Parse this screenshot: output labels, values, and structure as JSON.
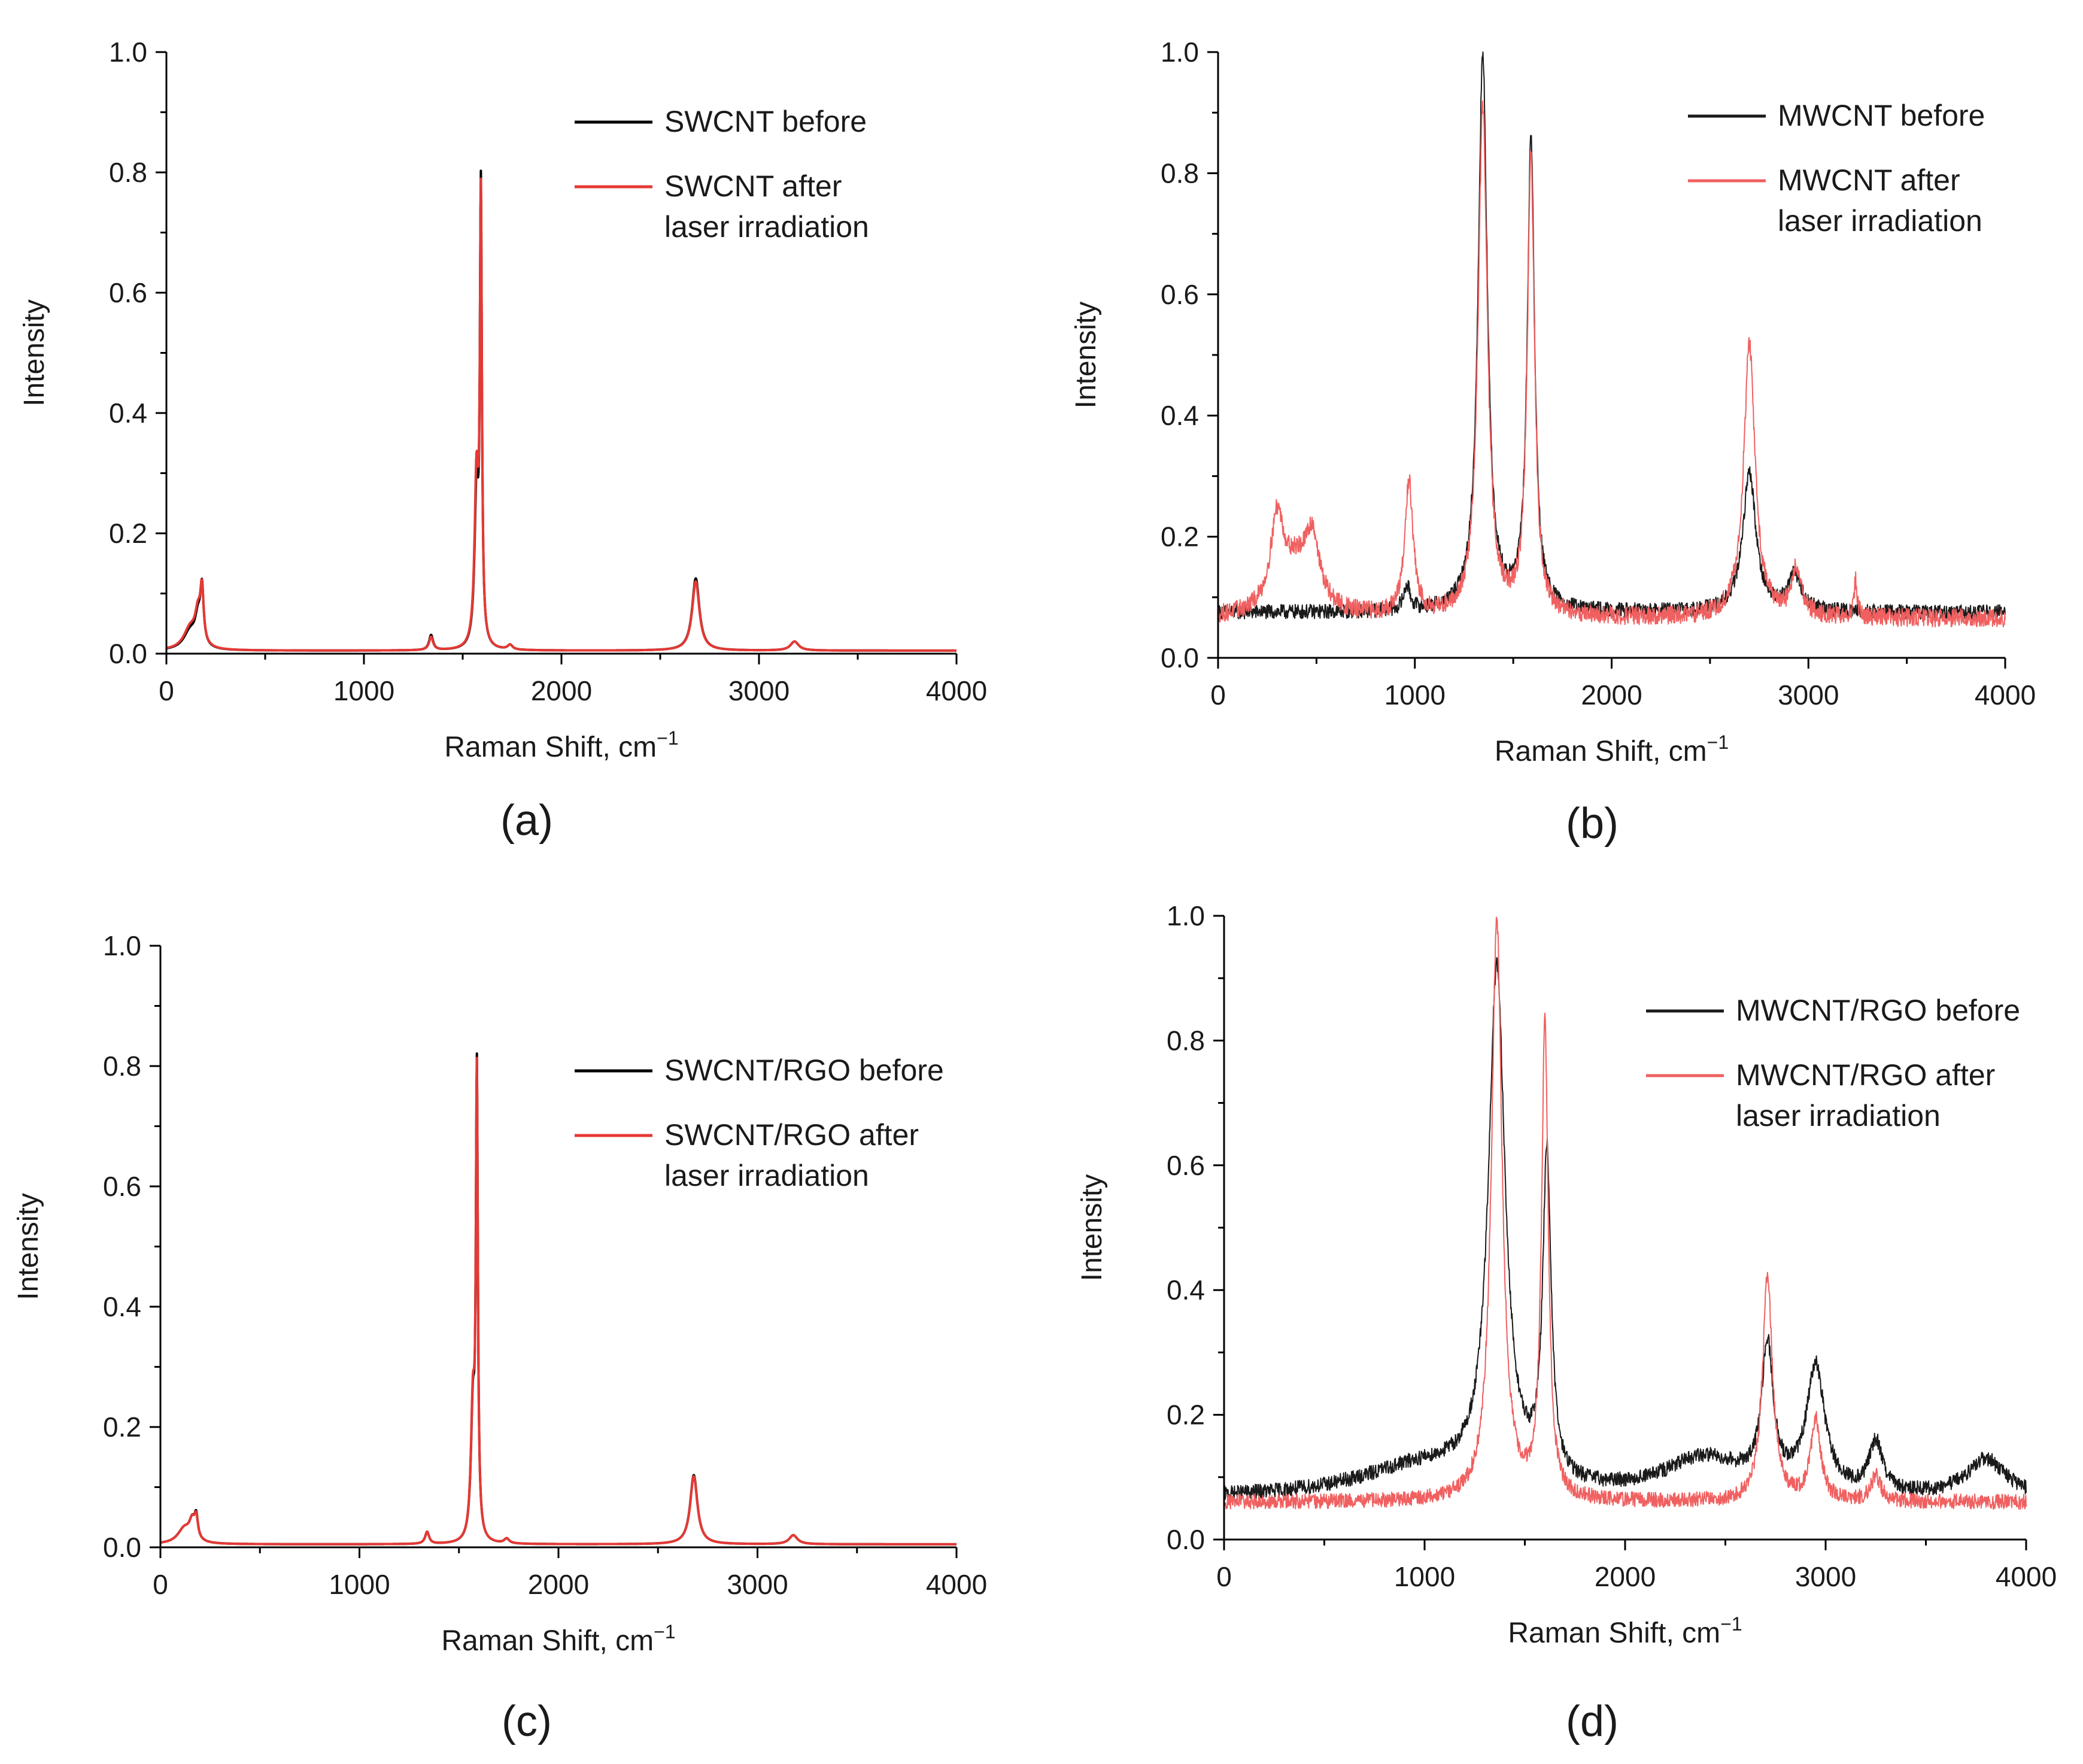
{
  "chart_data": [
    {
      "type": "line",
      "panel_label": "(a)",
      "xlabel": "Raman Shift, cm",
      "xlabel_sup": "−1",
      "ylabel": "Intensity",
      "xlim": [
        0,
        4000
      ],
      "ylim": [
        0,
        1.0
      ],
      "xticks": [
        "0",
        "1000",
        "2000",
        "3000",
        "4000"
      ],
      "yticks": [
        "0.0",
        "0.2",
        "0.4",
        "0.6",
        "0.8",
        "1.0"
      ],
      "legend_position": "top-right",
      "series": [
        {
          "name": "SWCNT before",
          "legend_lines": [
            "SWCNT before"
          ],
          "color": "#000000",
          "baseline": 0.005,
          "noise": 0,
          "peaks": [
            [
              120,
              0.03,
              40
            ],
            [
              160,
              0.045,
              18
            ],
            [
              180,
              0.09,
              10
            ],
            [
              1340,
              0.025,
              12
            ],
            [
              1570,
              0.25,
              12
            ],
            [
              1592,
              0.74,
              6
            ],
            [
              1740,
              0.008,
              15
            ],
            [
              2680,
              0.12,
              22
            ],
            [
              3180,
              0.015,
              25
            ]
          ]
        },
        {
          "name": "SWCNT after laser irradiation",
          "legend_lines": [
            "SWCNT after",
            "laser irradiation"
          ],
          "color": "#e53935",
          "baseline": 0.005,
          "noise": 0,
          "peaks": [
            [
              120,
              0.035,
              40
            ],
            [
              160,
              0.05,
              18
            ],
            [
              180,
              0.085,
              10
            ],
            [
              1340,
              0.022,
              12
            ],
            [
              1570,
              0.28,
              12
            ],
            [
              1592,
              0.72,
              6
            ],
            [
              1740,
              0.008,
              15
            ],
            [
              2680,
              0.115,
              22
            ],
            [
              3180,
              0.015,
              25
            ]
          ]
        }
      ]
    },
    {
      "type": "line",
      "panel_label": "(b)",
      "xlabel": "Raman Shift, cm",
      "xlabel_sup": "−1",
      "ylabel": "Intensity",
      "xlim": [
        0,
        4000
      ],
      "ylim": [
        0,
        1.0
      ],
      "xticks": [
        "0",
        "1000",
        "2000",
        "3000",
        "4000"
      ],
      "yticks": [
        "0.0",
        "0.2",
        "0.4",
        "0.6",
        "0.8",
        "1.0"
      ],
      "legend_position": "top-right",
      "series": [
        {
          "name": "MWCNT before",
          "legend_lines": [
            "MWCNT before"
          ],
          "color": "#1a1a1a",
          "baseline": 0.075,
          "noise": 0.012,
          "peaks": [
            [
              960,
              0.04,
              20
            ],
            [
              1345,
              0.92,
              28
            ],
            [
              1590,
              0.78,
              22
            ],
            [
              2700,
              0.23,
              40
            ],
            [
              2930,
              0.06,
              40
            ]
          ]
        },
        {
          "name": "MWCNT after laser irradiation",
          "legend_lines": [
            "MWCNT after",
            "laser irradiation"
          ],
          "color": "#f06060",
          "baseline": 0.065,
          "noise": 0.015,
          "peaks": [
            [
              300,
              0.14,
              40
            ],
            [
              480,
              0.1,
              40
            ],
            [
              400,
              0.08,
              100
            ],
            [
              970,
              0.22,
              25
            ],
            [
              1345,
              0.84,
              28
            ],
            [
              1590,
              0.75,
              22
            ],
            [
              2700,
              0.45,
              35
            ],
            [
              2940,
              0.08,
              30
            ],
            [
              3240,
              0.06,
              10
            ]
          ]
        }
      ]
    },
    {
      "type": "line",
      "panel_label": "(c)",
      "xlabel": "Raman Shift, cm",
      "xlabel_sup": "−1",
      "ylabel": "Intensity",
      "xlim": [
        0,
        4000
      ],
      "ylim": [
        0,
        1.0
      ],
      "xticks": [
        "0",
        "1000",
        "2000",
        "3000",
        "4000"
      ],
      "yticks": [
        "0.0",
        "0.2",
        "0.4",
        "0.6",
        "0.8",
        "1.0"
      ],
      "legend_position": "middle-right",
      "series": [
        {
          "name": "SWCNT/RGO before",
          "legend_lines": [
            "SWCNT/RGO before"
          ],
          "color": "#000000",
          "baseline": 0.005,
          "noise": 0,
          "peaks": [
            [
              120,
              0.025,
              40
            ],
            [
              160,
              0.03,
              18
            ],
            [
              180,
              0.035,
              10
            ],
            [
              1340,
              0.02,
              12
            ],
            [
              1570,
              0.21,
              12
            ],
            [
              1590,
              0.76,
              6
            ],
            [
              1740,
              0.008,
              15
            ],
            [
              2680,
              0.115,
              22
            ],
            [
              3180,
              0.015,
              25
            ]
          ]
        },
        {
          "name": "SWCNT/RGO after laser irradiation",
          "legend_lines": [
            "SWCNT/RGO after",
            "laser irradiation"
          ],
          "color": "#e53935",
          "baseline": 0.005,
          "noise": 0,
          "peaks": [
            [
              120,
              0.025,
              40
            ],
            [
              160,
              0.03,
              18
            ],
            [
              180,
              0.033,
              10
            ],
            [
              1340,
              0.02,
              12
            ],
            [
              1570,
              0.22,
              12
            ],
            [
              1590,
              0.75,
              6
            ],
            [
              1740,
              0.008,
              15
            ],
            [
              2680,
              0.113,
              22
            ],
            [
              3180,
              0.015,
              25
            ]
          ]
        }
      ]
    },
    {
      "type": "line",
      "panel_label": "(d)",
      "xlabel": "Raman Shift, cm",
      "xlabel_sup": "−1",
      "ylabel": "Intensity",
      "xlim": [
        0,
        4000
      ],
      "ylim": [
        0,
        1.0
      ],
      "xticks": [
        "0",
        "1000",
        "2000",
        "3000",
        "4000"
      ],
      "yticks": [
        "0.0",
        "0.2",
        "0.4",
        "0.6",
        "0.8",
        "1.0"
      ],
      "legend_position": "top-right",
      "series": [
        {
          "name": "MWCNT/RGO before",
          "legend_lines": [
            "MWCNT/RGO before"
          ],
          "color": "#1a1a1a",
          "baseline": 0.065,
          "noise": 0.012,
          "peaks": [
            [
              1000,
              0.05,
              400
            ],
            [
              1360,
              0.82,
              50
            ],
            [
              1610,
              0.52,
              25
            ],
            [
              2400,
              0.06,
              250
            ],
            [
              2710,
              0.22,
              35
            ],
            [
              2950,
              0.2,
              55
            ],
            [
              3250,
              0.08,
              40
            ],
            [
              3800,
              0.06,
              120
            ]
          ]
        },
        {
          "name": "MWCNT/RGO after laser irradiation",
          "legend_lines": [
            "MWCNT/RGO after",
            "laser irradiation"
          ],
          "color": "#f06060",
          "baseline": 0.06,
          "noise": 0.012,
          "peaks": [
            [
              1360,
              0.93,
              32
            ],
            [
              1600,
              0.76,
              20
            ],
            [
              2710,
              0.36,
              30
            ],
            [
              2950,
              0.13,
              30
            ],
            [
              3250,
              0.04,
              30
            ]
          ]
        }
      ]
    }
  ]
}
